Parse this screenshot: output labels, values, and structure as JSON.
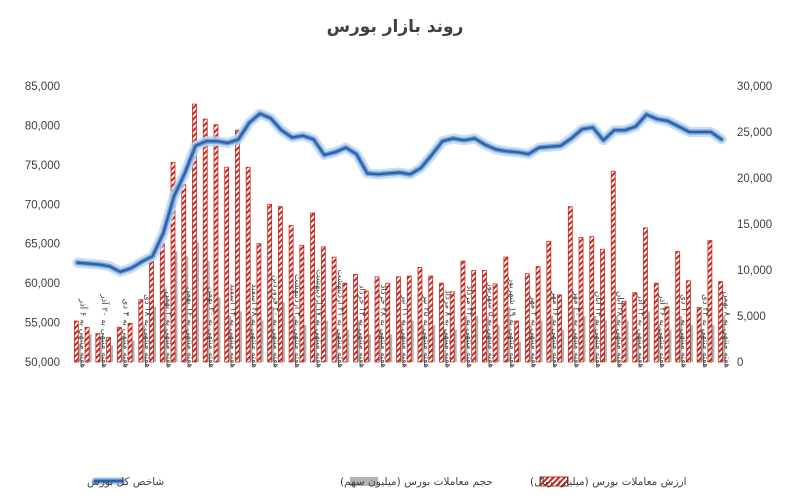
{
  "chart_data": {
    "type": "bar",
    "title": "روند بازار بورس",
    "y_left": {
      "ylim": [
        50000,
        85000
      ],
      "ticks": [
        "50,000",
        "55,000",
        "60,000",
        "65,000",
        "70,000",
        "75,000",
        "80,000",
        "85,000"
      ]
    },
    "y_right": {
      "ylim": [
        0,
        30000
      ],
      "ticks": [
        "0",
        "5,000",
        "10,000",
        "15,000",
        "20,000",
        "25,000",
        "30,000"
      ]
    },
    "grid": false,
    "legend_position": "bottom",
    "categories": [
      "هفته منتهی به ۶ آذر",
      "هفته منتهی به ۱۳ آذر",
      "هفته منتهی به ۲۰ آذر",
      "هفته منتهی به ۲۷ آذر",
      "هفته منتهی به ۴ دی",
      "هفته منتهی به ۱۱ دی",
      "هفته منتهی به ۱۸ دی",
      "هفته منتهی به ۲۵ دی",
      "هفته منتهی به ۲ بهمن",
      "هفته منتهی به ۹ بهمن",
      "هفته منتهی به ۱۶ بهمن",
      "هفته منتهی به ۲۳ بهمن",
      "هفته منتهی به ۳۰ بهمن",
      "هفته منتهی به ۷ اسفند",
      "هفته منتهی به ۱۴ اسفند",
      "هفته منتهی به ۲۱ اسفند",
      "هفته منتهی به ۲۸ اسفند",
      "هفته منتهی به ۱۳ فروردین",
      "هفته منتهی به ۲۰ فروردین",
      "هفته منتهی به ۲۷ فروردین",
      "هفته منتهی به ۳ اردیبهشت",
      "هفته منتهی به ۱۰ اردیبهشت",
      "هفته منتهی به ۱۷ اردیبهشت",
      "هفته منتهی به ۲۴ اردیبهشت",
      "هفته منتهی به ۳۱ اردیبهشت",
      "هفته منتهی به ۷ خرداد",
      "هفته منتهی به ۱۴ خرداد",
      "هفته منتهی به ۲۱ خرداد",
      "هفته منتهی به ۲۸ خرداد",
      "هفته منتهی به ۴ تیر",
      "هفته منتهی به ۱۱ تیر",
      "هفته منتهی به ۱۸ تیر",
      "هفته منتهی به ۲۵ تیر",
      "هفته منتهی به ۱ مرداد",
      "هفته منتهی به ۸ مرداد",
      "هفته منتهی به ۱۵ مرداد",
      "هفته منتهی به ۲۲ مرداد",
      "هفته منتهی به ۲۹ مرداد",
      "هفته منتهی به ۵ شهریور",
      "هفته منتهی به ۱۲ شهریور",
      "هفته منتهی به ۱۹ شهریور",
      "هفته منتهی به ۲۶ شهریور",
      "هفته منتهی به ۲ مهر",
      "هفته منتهی به ۹ مهر",
      "هفته منتهی به ۱۶ مهر",
      "هفته منتهی به ۲۳ مهر",
      "هفته منتهی به ۳۰ مهر",
      "هفته منتهی به ۷ آبان",
      "هفته منتهی به ۱۴ آبان",
      "هفته منتهی به ۲۱ آبان",
      "هفته منتهی به ۲۸ آبان",
      "هفته منتهی به ۵ آذر",
      "هفته منتهی به ۱۲ آذر",
      "هفته منتهی به ۱۹ آذر",
      "هفته منتهی به ۲۶ آذر",
      "هفته منتهی به ۳ دی",
      "هفته منتهی به ۱۰ دی",
      "هفته منتهی به ۱۷ دی",
      "هفته منتهی به ۲۴ دی",
      "هفته منتهی به ۱ بهمن",
      "هفته منتهی به ۸ بهمن"
    ],
    "x_label_indices": [
      0,
      2,
      4,
      6,
      8,
      10,
      12,
      14,
      16,
      18,
      20,
      22,
      24,
      26,
      28,
      30,
      32,
      34,
      36,
      38,
      40,
      42,
      44,
      46,
      48,
      50,
      52,
      54,
      56,
      58,
      60
    ],
    "series": [
      {
        "name": "ارزش معاملات بورس (میلیارد ریال)",
        "axis": "left",
        "style": "hatched",
        "color": "#c0392b",
        "values": [
          55200,
          54400,
          53600,
          53100,
          54400,
          54900,
          57900,
          62800,
          65000,
          75300,
          72500,
          82700,
          80800,
          80100,
          74700,
          79400,
          74700,
          65000,
          70000,
          69700,
          67300,
          64800,
          68900,
          64600,
          63300,
          60000,
          61100,
          59000,
          60800,
          60000,
          60800,
          60900,
          62000,
          60900,
          60000,
          58900,
          62800,
          61600,
          61600,
          59900,
          63300,
          55200,
          61200,
          62100,
          65300,
          58500,
          69700,
          65800,
          65900,
          64300,
          74200,
          57700,
          58800,
          67000,
          60000,
          57000,
          64000,
          60300,
          56900,
          65400,
          60200
        ]
      },
      {
        "name": "حجم معاملات بورس (میلیون سهم)",
        "axis": "right",
        "style": "solid",
        "color": "#b3b3b3",
        "values": [
          2000,
          3000,
          2500,
          1800,
          2500,
          2300,
          4000,
          6000,
          8000,
          12000,
          11500,
          13000,
          11000,
          7000,
          5000,
          5500,
          5000,
          4500,
          6000,
          6500,
          5000,
          4000,
          6500,
          4500,
          3500,
          3500,
          4500,
          3000,
          3500,
          3000,
          4500,
          4500,
          4000,
          4000,
          3500,
          3500,
          5000,
          5000,
          5000,
          4000,
          6000,
          2200,
          4000,
          4500,
          5000,
          3500,
          6000,
          5000,
          5000,
          4500,
          5000,
          4500,
          3000,
          5500,
          4000,
          3500,
          5000,
          4000,
          3500,
          4000,
          5000
        ]
      },
      {
        "name": "شاخص کل بورس",
        "axis": "right",
        "style": "glow-line",
        "color": "#2e5fa8",
        "values": [
          10800,
          10700,
          10600,
          10400,
          9800,
          10200,
          10900,
          11500,
          14000,
          18000,
          20500,
          23500,
          24000,
          24000,
          23800,
          24200,
          26000,
          27000,
          26500,
          25200,
          24400,
          24600,
          24200,
          22500,
          22800,
          23300,
          22600,
          20500,
          20400,
          20500,
          20600,
          20400,
          21100,
          22500,
          24000,
          24300,
          24100,
          24300,
          23600,
          23100,
          22900,
          22800,
          22600,
          23300,
          23400,
          23500,
          24300,
          25300,
          25500,
          24100,
          25200,
          25200,
          25600,
          26900,
          26400,
          26200,
          25600,
          25000,
          25000,
          25000,
          24200
        ]
      }
    ]
  }
}
